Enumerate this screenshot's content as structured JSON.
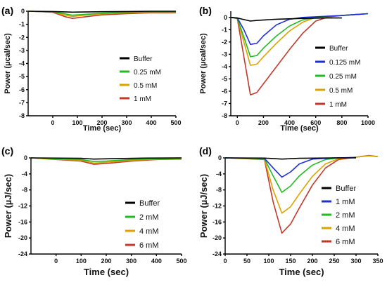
{
  "chart_data": [
    {
      "panel": "(a)",
      "type": "line",
      "xlabel": "Time (sec)",
      "ylabel": "Power (µcal/sec)",
      "xlim": [
        -100,
        500
      ],
      "ylim": [
        -8,
        0
      ],
      "xticks": [
        0,
        100,
        200,
        300,
        400,
        500
      ],
      "yticks": [
        0,
        -1,
        -2,
        -3,
        -4,
        -5,
        -6,
        -7,
        -8
      ],
      "legend_position": "right",
      "series": [
        {
          "name": "Buffer",
          "color": "#000000",
          "points": [
            [
              -100,
              0
            ],
            [
              0,
              -0.02
            ],
            [
              50,
              -0.05
            ],
            [
              80,
              -0.07
            ],
            [
              120,
              -0.06
            ],
            [
              200,
              -0.04
            ],
            [
              300,
              -0.02
            ],
            [
              400,
              0
            ],
            [
              500,
              0
            ]
          ]
        },
        {
          "name": "0.25 mM",
          "color": "#22bb22",
          "points": [
            [
              -100,
              0
            ],
            [
              0,
              -0.05
            ],
            [
              50,
              -0.2
            ],
            [
              80,
              -0.3
            ],
            [
              120,
              -0.25
            ],
            [
              200,
              -0.15
            ],
            [
              300,
              -0.08
            ],
            [
              400,
              -0.05
            ],
            [
              500,
              -0.05
            ]
          ]
        },
        {
          "name": "0.5 mM",
          "color": "#d9a400",
          "points": [
            [
              -100,
              0
            ],
            [
              0,
              -0.05
            ],
            [
              50,
              -0.3
            ],
            [
              80,
              -0.4
            ],
            [
              120,
              -0.32
            ],
            [
              200,
              -0.2
            ],
            [
              300,
              -0.12
            ],
            [
              400,
              -0.08
            ],
            [
              500,
              -0.08
            ]
          ]
        },
        {
          "name": "1 mM",
          "color": "#c0392b",
          "points": [
            [
              -100,
              0
            ],
            [
              0,
              -0.08
            ],
            [
              50,
              -0.42
            ],
            [
              80,
              -0.55
            ],
            [
              120,
              -0.45
            ],
            [
              200,
              -0.28
            ],
            [
              300,
              -0.18
            ],
            [
              400,
              -0.12
            ],
            [
              500,
              -0.12
            ]
          ]
        }
      ]
    },
    {
      "panel": "(b)",
      "type": "line",
      "xlabel": "Time (sec)",
      "ylabel": "Power (µcal/sec)",
      "xlim": [
        -50,
        1000
      ],
      "ylim": [
        -8,
        0.5
      ],
      "xticks": [
        0,
        200,
        400,
        600,
        800,
        1000
      ],
      "yticks": [
        0,
        -1,
        -2,
        -3,
        -4,
        -5,
        -6,
        -7,
        -8
      ],
      "legend_position": "right",
      "series": [
        {
          "name": "Buffer",
          "color": "#000000",
          "points": [
            [
              -50,
              0
            ],
            [
              0,
              -0.05
            ],
            [
              50,
              -0.18
            ],
            [
              100,
              -0.3
            ],
            [
              150,
              -0.25
            ],
            [
              300,
              -0.15
            ],
            [
              500,
              -0.08
            ],
            [
              700,
              -0.05
            ],
            [
              800,
              -0.05
            ]
          ]
        },
        {
          "name": "0.125 mM",
          "color": "#1f2fd6",
          "points": [
            [
              -50,
              0
            ],
            [
              0,
              -0.05
            ],
            [
              50,
              -1.0
            ],
            [
              100,
              -2.2
            ],
            [
              150,
              -2.1
            ],
            [
              200,
              -1.5
            ],
            [
              300,
              -0.6
            ],
            [
              400,
              -0.15
            ],
            [
              500,
              0
            ],
            [
              600,
              0.05
            ],
            [
              800,
              0.15
            ],
            [
              1000,
              0.3
            ]
          ]
        },
        {
          "name": "0.25 mM",
          "color": "#22bb22",
          "points": [
            [
              -50,
              0
            ],
            [
              0,
              -0.1
            ],
            [
              50,
              -1.6
            ],
            [
              100,
              -3.2
            ],
            [
              150,
              -3.1
            ],
            [
              200,
              -2.5
            ],
            [
              300,
              -1.5
            ],
            [
              400,
              -0.7
            ],
            [
              500,
              -0.2
            ],
            [
              600,
              0
            ],
            [
              800,
              0.15
            ],
            [
              1000,
              0.3
            ]
          ]
        },
        {
          "name": "0.5 mM",
          "color": "#d9a400",
          "points": [
            [
              -50,
              0
            ],
            [
              0,
              -0.1
            ],
            [
              50,
              -2.0
            ],
            [
              100,
              -3.9
            ],
            [
              150,
              -3.8
            ],
            [
              200,
              -3.2
            ],
            [
              300,
              -2.1
            ],
            [
              400,
              -1.1
            ],
            [
              500,
              -0.4
            ],
            [
              600,
              0
            ],
            [
              800,
              0.15
            ],
            [
              1000,
              0.3
            ]
          ]
        },
        {
          "name": "1 mM",
          "color": "#c0392b",
          "points": [
            [
              -50,
              0
            ],
            [
              0,
              -0.1
            ],
            [
              50,
              -3.2
            ],
            [
              100,
              -6.3
            ],
            [
              150,
              -6.1
            ],
            [
              200,
              -5.4
            ],
            [
              300,
              -4.0
            ],
            [
              400,
              -2.6
            ],
            [
              500,
              -1.3
            ],
            [
              600,
              -0.3
            ],
            [
              700,
              0.05
            ],
            [
              800,
              0.15
            ],
            [
              1000,
              0.3
            ]
          ]
        }
      ]
    },
    {
      "panel": "(c)",
      "type": "line",
      "xlabel": "Time (sec)",
      "ylabel": "Power (µJ/sec)",
      "xlim": [
        -100,
        500
      ],
      "ylim": [
        -24,
        0
      ],
      "xticks": [
        0,
        100,
        200,
        300,
        400,
        500
      ],
      "yticks": [
        0,
        -4,
        -8,
        -12,
        -16,
        -20,
        -24
      ],
      "legend_position": "right",
      "series": [
        {
          "name": "Buffer",
          "color": "#000000",
          "points": [
            [
              -100,
              0
            ],
            [
              100,
              -0.1
            ],
            [
              150,
              -0.3
            ],
            [
              250,
              -0.15
            ],
            [
              350,
              -0.05
            ],
            [
              500,
              0
            ]
          ]
        },
        {
          "name": "2 mM",
          "color": "#22bb22",
          "points": [
            [
              -100,
              0
            ],
            [
              100,
              -0.4
            ],
            [
              150,
              -0.9
            ],
            [
              200,
              -0.8
            ],
            [
              300,
              -0.4
            ],
            [
              400,
              -0.2
            ],
            [
              500,
              -0.1
            ]
          ]
        },
        {
          "name": "4 mM",
          "color": "#d9a400",
          "points": [
            [
              -100,
              0
            ],
            [
              100,
              -0.6
            ],
            [
              150,
              -1.3
            ],
            [
              200,
              -1.1
            ],
            [
              300,
              -0.6
            ],
            [
              400,
              -0.3
            ],
            [
              500,
              -0.2
            ]
          ]
        },
        {
          "name": "6 mM",
          "color": "#c0392b",
          "points": [
            [
              -100,
              0
            ],
            [
              100,
              -0.8
            ],
            [
              150,
              -1.6
            ],
            [
              200,
              -1.4
            ],
            [
              300,
              -0.8
            ],
            [
              400,
              -0.4
            ],
            [
              500,
              -0.3
            ]
          ]
        }
      ]
    },
    {
      "panel": "(d)",
      "type": "line",
      "xlabel": "Time (sec)",
      "ylabel": "Power (µJ/sec)",
      "xlim": [
        0,
        350
      ],
      "ylim": [
        -24,
        0
      ],
      "xticks": [
        0,
        50,
        100,
        150,
        200,
        250,
        300,
        350
      ],
      "yticks": [
        0,
        -4,
        -8,
        -12,
        -16,
        -20,
        -24
      ],
      "legend_position": "right",
      "series": [
        {
          "name": "Buffer",
          "color": "#000000",
          "points": [
            [
              0,
              0
            ],
            [
              90,
              -0.05
            ],
            [
              130,
              -0.3
            ],
            [
              170,
              -0.1
            ],
            [
              250,
              0
            ],
            [
              300,
              0
            ]
          ]
        },
        {
          "name": "1 mM",
          "color": "#1f2fd6",
          "points": [
            [
              0,
              0
            ],
            [
              90,
              -0.1
            ],
            [
              110,
              -2.5
            ],
            [
              130,
              -4.8
            ],
            [
              150,
              -3.5
            ],
            [
              170,
              -1.5
            ],
            [
              200,
              -0.3
            ],
            [
              250,
              0
            ],
            [
              300,
              0.1
            ]
          ]
        },
        {
          "name": "2 mM",
          "color": "#22bb22",
          "points": [
            [
              0,
              0
            ],
            [
              90,
              -0.2
            ],
            [
              110,
              -4.5
            ],
            [
              130,
              -8.6
            ],
            [
              150,
              -7.0
            ],
            [
              170,
              -4.5
            ],
            [
              200,
              -1.8
            ],
            [
              230,
              -0.4
            ],
            [
              260,
              0
            ],
            [
              300,
              0.1
            ]
          ]
        },
        {
          "name": "4 mM",
          "color": "#d9a400",
          "points": [
            [
              0,
              0
            ],
            [
              90,
              -0.3
            ],
            [
              110,
              -8.0
            ],
            [
              130,
              -13.8
            ],
            [
              150,
              -12.2
            ],
            [
              170,
              -9.0
            ],
            [
              200,
              -4.6
            ],
            [
              230,
              -1.5
            ],
            [
              260,
              -0.2
            ],
            [
              300,
              0.2
            ],
            [
              330,
              0.5
            ],
            [
              350,
              0.3
            ]
          ]
        },
        {
          "name": "6 mM",
          "color": "#c0392b",
          "points": [
            [
              0,
              0
            ],
            [
              90,
              -0.4
            ],
            [
              110,
              -11.0
            ],
            [
              130,
              -18.8
            ],
            [
              150,
              -16.5
            ],
            [
              170,
              -12.5
            ],
            [
              200,
              -6.8
            ],
            [
              230,
              -2.5
            ],
            [
              260,
              -0.4
            ],
            [
              300,
              0.2
            ],
            [
              330,
              0.6
            ],
            [
              350,
              0.3
            ]
          ]
        }
      ]
    }
  ]
}
